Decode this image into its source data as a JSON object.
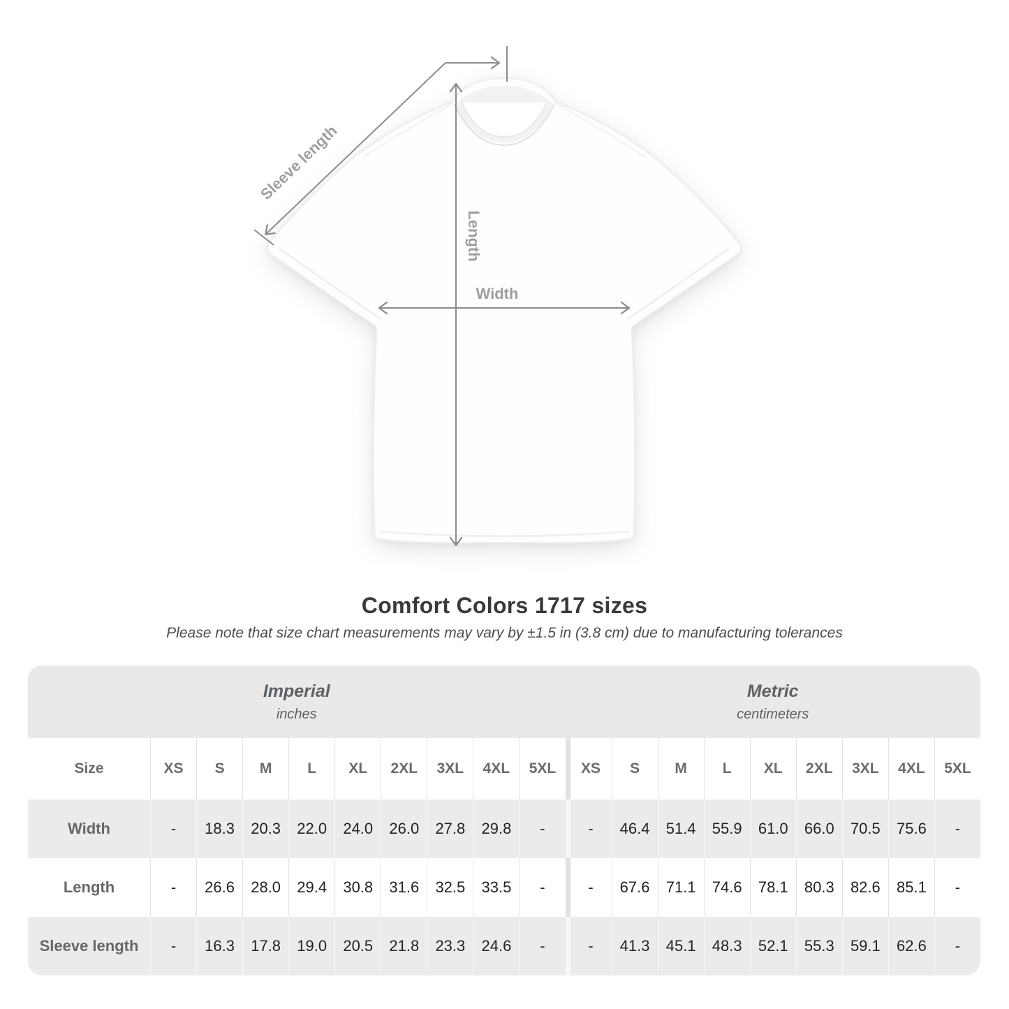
{
  "diagram": {
    "labels": {
      "sleeve": "Sleeve length",
      "length": "Length",
      "width": "Width"
    }
  },
  "title": "Comfort Colors 1717 sizes",
  "note": "Please note that size chart measurements may vary by ±1.5 in (3.8 cm) due to manufacturing tolerances",
  "chart_data": {
    "type": "table",
    "title": "Comfort Colors 1717 sizes",
    "size_header": "Size",
    "groups": [
      {
        "label": "Imperial",
        "unit": "inches"
      },
      {
        "label": "Metric",
        "unit": "centimeters"
      }
    ],
    "sizes": [
      "XS",
      "S",
      "M",
      "L",
      "XL",
      "2XL",
      "3XL",
      "4XL",
      "5XL"
    ],
    "rows": [
      {
        "label": "Width",
        "imperial": [
          "-",
          "18.3",
          "20.3",
          "22.0",
          "24.0",
          "26.0",
          "27.8",
          "29.8",
          "-"
        ],
        "metric": [
          "-",
          "46.4",
          "51.4",
          "55.9",
          "61.0",
          "66.0",
          "70.5",
          "75.6",
          "-"
        ]
      },
      {
        "label": "Length",
        "imperial": [
          "-",
          "26.6",
          "28.0",
          "29.4",
          "30.8",
          "31.6",
          "32.5",
          "33.5",
          "-"
        ],
        "metric": [
          "-",
          "67.6",
          "71.1",
          "74.6",
          "78.1",
          "80.3",
          "82.6",
          "85.1",
          "-"
        ]
      },
      {
        "label": "Sleeve length",
        "imperial": [
          "-",
          "16.3",
          "17.8",
          "19.0",
          "20.5",
          "21.8",
          "23.3",
          "24.6",
          "-"
        ],
        "metric": [
          "-",
          "41.3",
          "45.1",
          "48.3",
          "52.1",
          "55.3",
          "59.1",
          "62.6",
          "-"
        ]
      }
    ]
  },
  "colors": {
    "measure_line": "#8c8c8c",
    "measure_label": "#9c9ea1",
    "band_gray": "#e9e9ea",
    "row_gray": "#ebebec",
    "title_text": "#3a3a3a"
  }
}
